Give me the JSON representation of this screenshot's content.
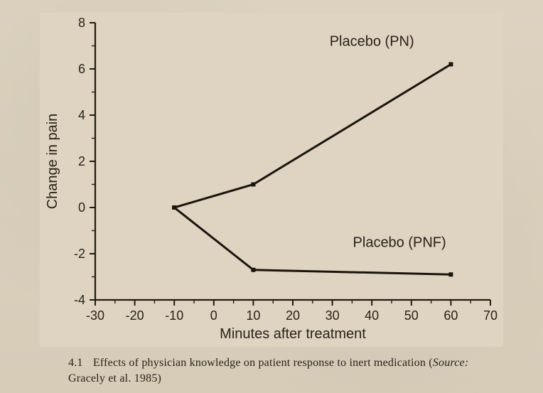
{
  "chart": {
    "type": "line",
    "background_color": "#ded4c1",
    "plot_background_color": "#ded4c1",
    "axis_color": "#231c12",
    "axis_line_width": 2.2,
    "xlabel": "Minutes after treatment",
    "ylabel": "Change in pain",
    "label_fontsize": 20,
    "tick_fontsize": 18,
    "font_family": "Arial, Helvetica, sans-serif",
    "xlim": [
      -30,
      70
    ],
    "ylim": [
      -4,
      8
    ],
    "xticks": [
      -30,
      -20,
      -10,
      0,
      10,
      20,
      30,
      40,
      50,
      60,
      70
    ],
    "yticks": [
      -4,
      -2,
      0,
      2,
      4,
      6,
      8
    ],
    "x_minor_ticks_between": 1,
    "y_minor_ticks_between": 1,
    "tick_out_length_major": 8,
    "tick_out_length_minor": 5,
    "grid": false,
    "line_width": 3,
    "marker_size": 6,
    "series": [
      {
        "name": "Placebo (PN)",
        "label": "Placebo (PN)",
        "label_xy": [
          40,
          7.0
        ],
        "color": "#1b140c",
        "marker": "square",
        "points": [
          {
            "x": -10,
            "y": 0.0
          },
          {
            "x": 10,
            "y": 1.0
          },
          {
            "x": 60,
            "y": 6.2
          }
        ]
      },
      {
        "name": "Placebo (PNF)",
        "label": "Placebo (PNF)",
        "label_xy": [
          47,
          -1.7
        ],
        "color": "#1b140c",
        "marker": "square",
        "points": [
          {
            "x": -10,
            "y": 0.0
          },
          {
            "x": 10,
            "y": -2.7
          },
          {
            "x": 60,
            "y": -2.9
          }
        ]
      }
    ]
  },
  "caption": {
    "number": "4.1",
    "text": "Effects of physician knowledge on patient response to inert medication",
    "source_label": "Source:",
    "source": "Gracely et al. 1985"
  }
}
